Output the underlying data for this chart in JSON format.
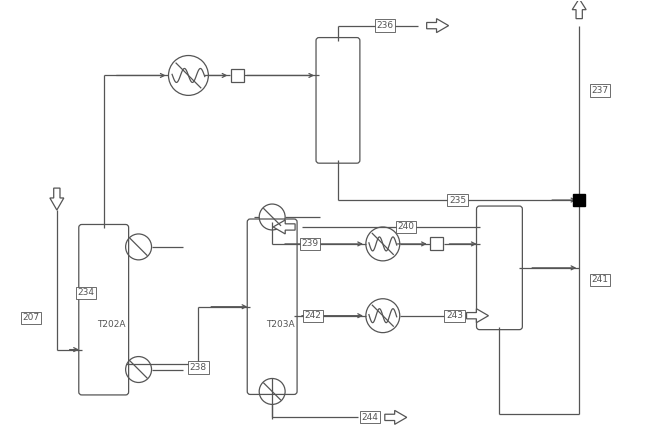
{
  "bg_color": "#ffffff",
  "line_color": "#555555",
  "font_size": 6.5,
  "lw": 0.9,
  "fig_w": 6.46,
  "fig_h": 4.37,
  "dpi": 100
}
